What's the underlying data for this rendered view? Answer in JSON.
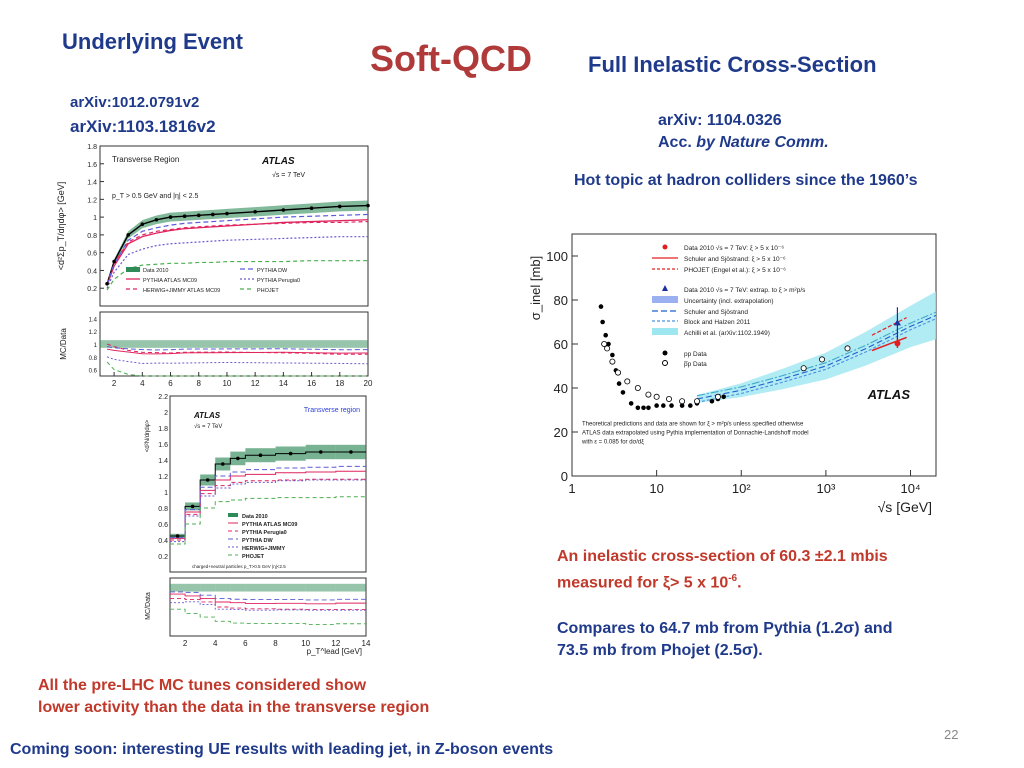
{
  "slide": {
    "title": "Soft-QCD",
    "left_heading": "Underlying Event",
    "right_heading": "Full Inelastic Cross-Section",
    "left_refs": [
      "arXiv:1012.0791v2",
      "arXiv:1103.1816v2"
    ],
    "right_ref": "arXiv: 1104.0326",
    "right_ref_pub_prefix": "Acc.",
    "right_ref_pub": "by Nature Comm.",
    "hot_topic": "Hot topic at hadron colliders since the 1960’s",
    "result_line1": "An inelastic cross-section of 60.3 ±2.1 mbis",
    "result_line2_prefix": "measured for ξ> 5 x 10",
    "result_line2_sup": "-6",
    "result_line2_suffix": ".",
    "compare_line1": "Compares to 64.7 mb from Pythia (1.2σ) and",
    "compare_line2": "73.5 mb from Phojet (2.5σ).",
    "mc_line1": "All the pre-LHC MC tunes considered show",
    "mc_line2": "lower activity than the data in the transverse region",
    "coming_soon": "Coming soon: interesting UE results with leading jet, in Z-boson events",
    "page_number": "22",
    "colors": {
      "blue": "#1f3a8a",
      "red": "#c0392b",
      "green_band": "#2e8b57"
    }
  },
  "chart_data": [
    {
      "type": "line",
      "id": "ue-sumpt",
      "region_label": "Transverse Region",
      "experiment_label": "ATLAS",
      "energy_label": "√s = 7 TeV",
      "cut_label": "p_T > 0.5  GeV and |η| < 2.5",
      "ylabel": "<d²Σp_T/dηdφ> [GeV]",
      "ratio_ylabel": "MC/Data",
      "ylim": [
        0,
        1.8
      ],
      "yticks": [
        "1.8",
        "1.6",
        "1.4",
        "1.2",
        "1",
        "0.8",
        "0.6",
        "0.4",
        "0.2"
      ],
      "ratio_yticks": [
        "1.4",
        "1.2",
        "1",
        "0.8",
        "0.6"
      ],
      "xticks": [
        "2",
        "4",
        "6",
        "8",
        "10",
        "12",
        "14",
        "16",
        "18",
        "20"
      ],
      "xlim": [
        1,
        20
      ],
      "ratio_ylim": [
        0.5,
        1.5
      ],
      "legend": [
        "Data 2010",
        "PYTHIA ATLAS MC09",
        "HERWIG+JIMMY ATLAS MC09",
        "PYTHIA DW",
        "PYTHIA Perugia0",
        "PHOJET"
      ],
      "x": [
        1.5,
        2,
        3,
        4,
        5,
        6,
        7,
        8,
        9,
        10,
        12,
        14,
        16,
        18,
        20
      ],
      "series": [
        {
          "name": "Data 2010",
          "values": [
            0.25,
            0.5,
            0.8,
            0.92,
            0.97,
            1.0,
            1.01,
            1.02,
            1.03,
            1.04,
            1.06,
            1.08,
            1.1,
            1.12,
            1.13
          ]
        },
        {
          "name": "PYTHIA ATLAS MC09",
          "values": [
            0.23,
            0.45,
            0.7,
            0.78,
            0.82,
            0.85,
            0.87,
            0.88,
            0.89,
            0.9,
            0.92,
            0.94,
            0.95,
            0.96,
            0.97
          ]
        },
        {
          "name": "HERWIG+JIMMY ATLAS MC09",
          "values": [
            0.25,
            0.48,
            0.72,
            0.8,
            0.84,
            0.86,
            0.88,
            0.89,
            0.9,
            0.91,
            0.92,
            0.93,
            0.94,
            0.94,
            0.95
          ]
        },
        {
          "name": "PYTHIA DW",
          "values": [
            0.24,
            0.47,
            0.74,
            0.84,
            0.88,
            0.91,
            0.93,
            0.94,
            0.95,
            0.96,
            0.98,
            1.0,
            1.01,
            1.02,
            1.03
          ]
        },
        {
          "name": "PYTHIA Perugia0",
          "values": [
            0.2,
            0.38,
            0.58,
            0.64,
            0.68,
            0.7,
            0.71,
            0.72,
            0.73,
            0.74,
            0.75,
            0.76,
            0.77,
            0.78,
            0.78
          ]
        },
        {
          "name": "PHOJET",
          "values": [
            0.18,
            0.3,
            0.42,
            0.46,
            0.47,
            0.48,
            0.48,
            0.49,
            0.49,
            0.5,
            0.5,
            0.5,
            0.51,
            0.51,
            0.51
          ]
        }
      ]
    },
    {
      "type": "line",
      "id": "ue-nch",
      "region_label": "Transverse region",
      "experiment_label": "ATLAS",
      "energy_label": "√s = 7 TeV",
      "cut_label": "charged+neutral particles p_T>0.5 GeV  |η|<2.5",
      "ylabel": "<d²N/dηdφ>",
      "ratio_ylabel": "MC/Data",
      "xlabel": "p_T^lead [GeV]",
      "ylim": [
        0,
        2.2
      ],
      "xlim": [
        1,
        14
      ],
      "yticks": [
        "2.2",
        "2",
        "1.8",
        "1.6",
        "1.4",
        "1.2",
        "1",
        "0.8",
        "0.6",
        "0.4",
        "0.2"
      ],
      "xticks": [
        "2",
        "4",
        "6",
        "8",
        "10",
        "12",
        "14"
      ],
      "legend": [
        "Data 2010",
        "PYTHIA ATLAS MC09",
        "PYTHIA Perugia0",
        "PYTHIA DW",
        "HERWIG+JIMMY",
        "PHOJET"
      ],
      "x": [
        1.5,
        2.5,
        3.5,
        4.5,
        5.5,
        7,
        9,
        11,
        13
      ],
      "series": [
        {
          "name": "Data 2010",
          "values": [
            0.45,
            0.82,
            1.15,
            1.35,
            1.42,
            1.46,
            1.48,
            1.5,
            1.5
          ]
        },
        {
          "name": "PYTHIA ATLAS MC09",
          "values": [
            0.42,
            0.75,
            1.02,
            1.15,
            1.2,
            1.22,
            1.24,
            1.25,
            1.26
          ]
        },
        {
          "name": "PYTHIA Perugia0",
          "values": [
            0.4,
            0.72,
            0.98,
            1.08,
            1.12,
            1.14,
            1.15,
            1.16,
            1.16
          ]
        },
        {
          "name": "PYTHIA DW",
          "values": [
            0.43,
            0.78,
            1.06,
            1.2,
            1.25,
            1.28,
            1.3,
            1.31,
            1.32
          ]
        },
        {
          "name": "HERWIG+JIMMY",
          "values": [
            0.38,
            0.7,
            0.95,
            1.05,
            1.1,
            1.12,
            1.14,
            1.15,
            1.15
          ]
        },
        {
          "name": "PHOJET",
          "values": [
            0.35,
            0.6,
            0.8,
            0.88,
            0.9,
            0.92,
            0.93,
            0.93,
            0.94
          ]
        }
      ]
    },
    {
      "type": "scatter",
      "id": "inelastic-xsec",
      "ylabel": "σ_inel [mb]",
      "xlabel": "√s [GeV]",
      "x_scale": "log",
      "xlim": [
        1,
        20000
      ],
      "ylim": [
        0,
        110
      ],
      "yticks": [
        "0",
        "20",
        "40",
        "60",
        "80",
        "100"
      ],
      "xticks": [
        "1",
        "10",
        "10²",
        "10³",
        "10⁴"
      ],
      "experiment_label": "ATLAS",
      "legend": [
        "Data 2010 √s = 7 TeV: ξ > 5 x 10⁻⁶",
        "Schuler and Sjöstrand: ξ > 5 x 10⁻⁶",
        "PHOJET (Engel et al.): ξ > 5 x 10⁻⁶",
        "Data 2010 √s = 7 TeV: extrap. to ξ > m²p/s",
        "Uncertainty (incl. extrapolation)",
        "Schuler and Sjöstrand",
        "Block and Halzen 2011",
        "Achilli et al. (arXiv:1102.1949)",
        "pp Data",
        "p̅p Data"
      ],
      "footnote": [
        "Theoretical predictions and data are shown for ξ > m²p/s unless specified otherwise",
        "ATLAS data extrapolated using Pythia implementation of Donnachie-Landshoff model",
        "with ε = 0.085 for dσ/dξ"
      ],
      "pp_data": {
        "x": [
          2.2,
          2.3,
          2.5,
          2.7,
          3.0,
          3.3,
          3.6,
          4,
          5,
          6,
          7,
          8,
          10,
          12,
          15,
          20,
          25,
          30,
          45,
          53,
          62
        ],
        "y": [
          77,
          70,
          64,
          60,
          55,
          48,
          42,
          38,
          33,
          31,
          31,
          31,
          32,
          32,
          32,
          32,
          32,
          33,
          34,
          35,
          36
        ]
      },
      "ppbar_data": {
        "x": [
          2.4,
          2.6,
          3.0,
          3.5,
          4.5,
          6,
          8,
          10,
          14,
          20,
          30,
          53,
          546,
          900,
          1800
        ],
        "y": [
          60,
          58,
          52,
          47,
          43,
          40,
          37,
          36,
          35,
          34,
          34,
          36,
          49,
          53,
          58
        ]
      },
      "atlas_measurement": {
        "x": 7000,
        "y": 60.3,
        "error": 2.1
      },
      "atlas_extrapolated": {
        "x": 7000,
        "y": 69.4,
        "error": 7.3
      }
    }
  ]
}
